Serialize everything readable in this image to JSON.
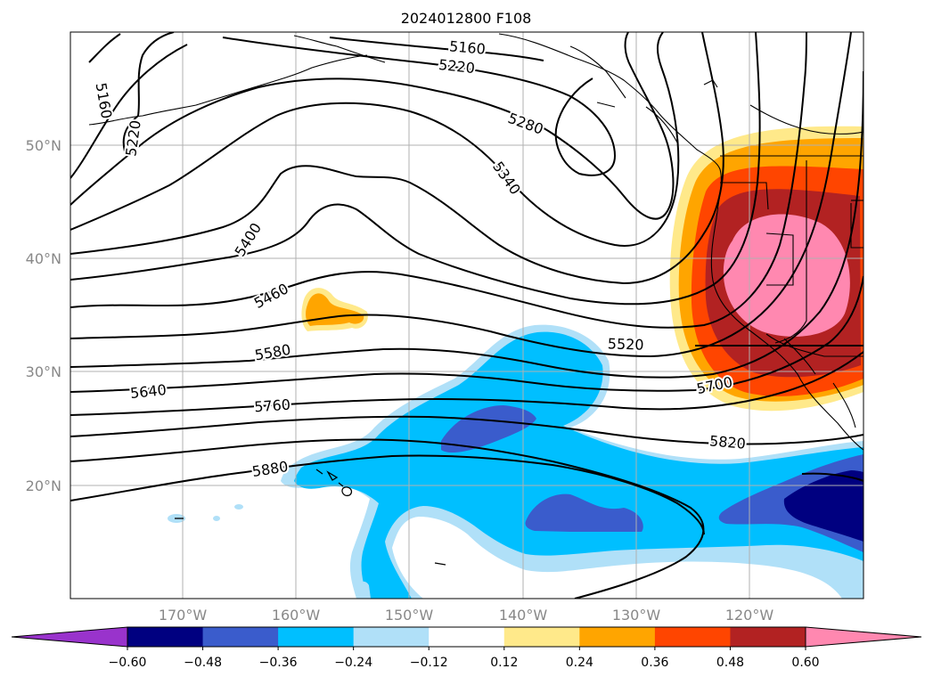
{
  "title": "2024012800 F108",
  "lat_labels": [
    "50°N",
    "40°N",
    "30°N",
    "20°N"
  ],
  "lon_labels": [
    "170°W",
    "160°W",
    "150°W",
    "140°W",
    "130°W",
    "120°W"
  ],
  "contour_labels": [
    "5160",
    "5220",
    "5280",
    "5340",
    "5400",
    "5460",
    "5520",
    "5580",
    "5640",
    "5700",
    "5760",
    "5820",
    "5880"
  ],
  "colorbar": {
    "tick_labels": [
      "−0.60",
      "−0.48",
      "−0.36",
      "−0.24",
      "−0.12",
      "0.12",
      "0.24",
      "0.36",
      "0.48",
      "0.60"
    ],
    "colors": [
      "#9933cc",
      "#000080",
      "#3a5ccc",
      "#00bfff",
      "#b0e0f8",
      "#ffffff",
      "#ffe98a",
      "#ffa500",
      "#ff4500",
      "#b22222",
      "#ff88b0"
    ],
    "extend": "both"
  },
  "fill_colors": {
    "warm1": "#ffe98a",
    "warm2": "#ffa500",
    "warm3": "#ff4500",
    "warm4": "#b22222",
    "warm5": "#ff88b0",
    "cool1": "#b0e0f8",
    "cool2": "#00bfff",
    "cool3": "#3a5ccc",
    "cool4": "#000080"
  }
}
